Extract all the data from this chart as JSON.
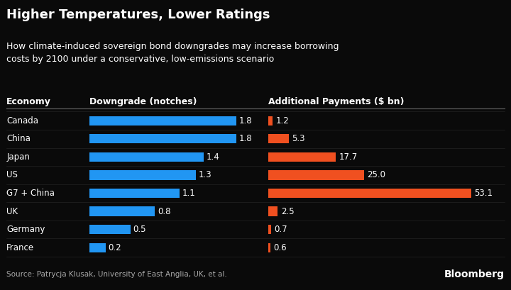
{
  "title": "Higher Temperatures, Lower Ratings",
  "subtitle": "How climate-induced sovereign bond downgrades may increase borrowing\ncosts by 2100 under a conservative, low-emissions scenario",
  "economies": [
    "Canada",
    "China",
    "Japan",
    "US",
    "G7 + China",
    "UK",
    "Germany",
    "France"
  ],
  "downgrades": [
    1.8,
    1.8,
    1.4,
    1.3,
    1.1,
    0.8,
    0.5,
    0.2
  ],
  "payments": [
    1.2,
    5.3,
    17.7,
    25.0,
    53.1,
    2.5,
    0.7,
    0.6
  ],
  "downgrade_col_label": "Downgrade (notches)",
  "payment_col_label": "Additional Payments ($ bn)",
  "economy_col_label": "Economy",
  "blue_color": "#2196F3",
  "orange_color": "#F05020",
  "background_color": "#0a0a0a",
  "text_color": "#FFFFFF",
  "source_text": "Source: Patrycja Klusak, University of East Anglia, UK, et al.",
  "bloomberg_text": "Bloomberg",
  "title_fontsize": 13,
  "subtitle_fontsize": 9,
  "label_fontsize": 8.5,
  "header_fontsize": 9,
  "source_fontsize": 7.5,
  "bloomberg_fontsize": 10
}
